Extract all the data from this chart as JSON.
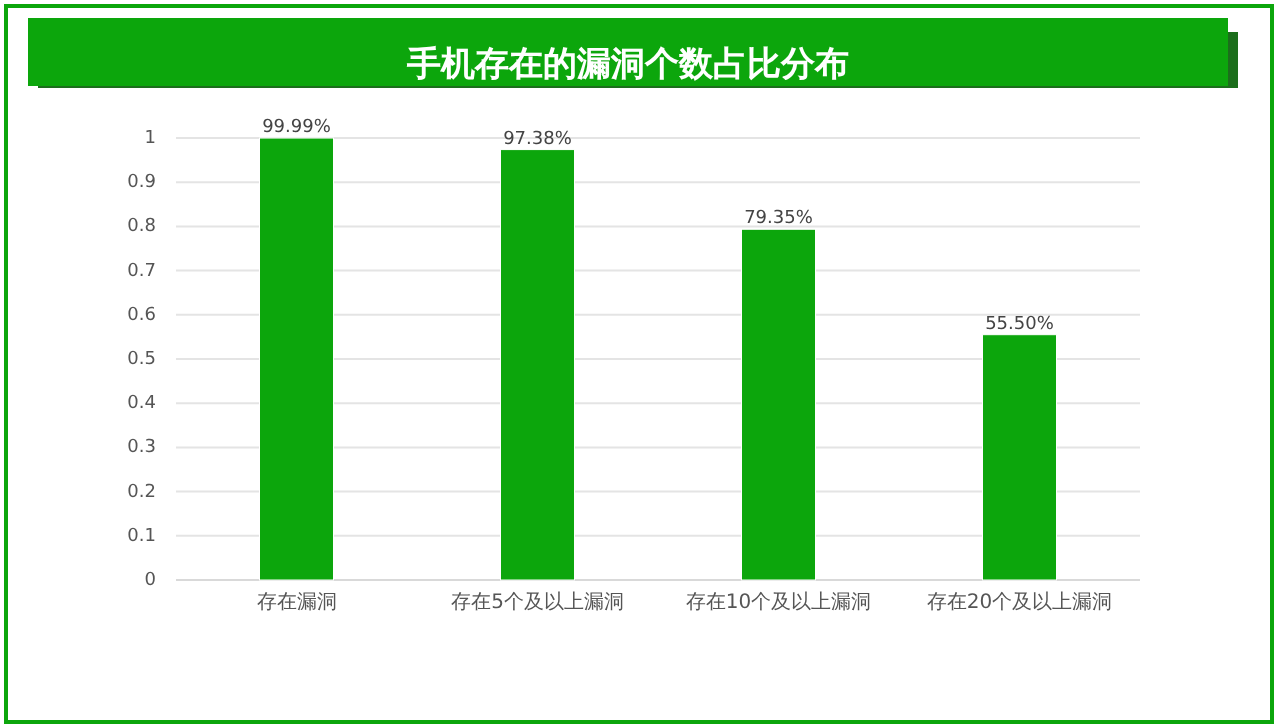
{
  "chart_data": {
    "type": "bar",
    "title": "手机存在的漏洞个数占比分布",
    "categories": [
      "存在漏洞",
      "存在5个及以上漏洞",
      "存在10个及以上漏洞",
      "存在20个及以上漏洞"
    ],
    "values": [
      0.9999,
      0.9738,
      0.7935,
      0.555
    ],
    "value_labels": [
      "99.99%",
      "97.38%",
      "79.35%",
      "55.50%"
    ],
    "color": "#0ca60c",
    "ylim": [
      0,
      1
    ],
    "yticks": [
      0,
      0.1,
      0.2,
      0.3,
      0.4,
      0.5,
      0.6,
      0.7,
      0.8,
      0.9,
      1
    ],
    "grid": "y"
  }
}
